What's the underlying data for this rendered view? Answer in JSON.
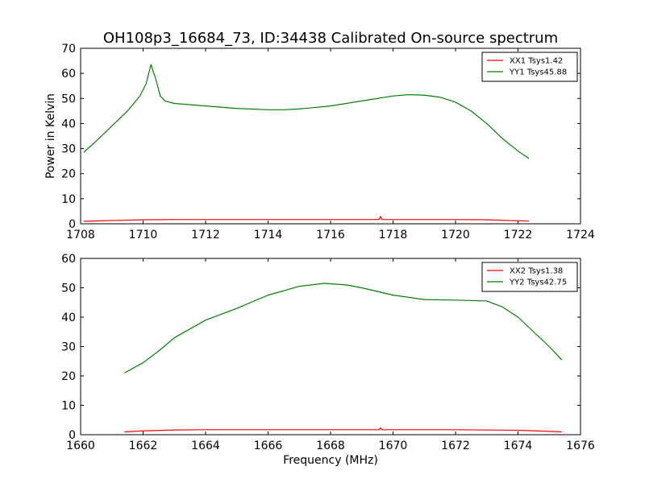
{
  "chart_data": [
    {
      "type": "line",
      "title": "OH108p3_16684_73, ID:34438 Calibrated On-source spectrum",
      "xlabel": "",
      "ylabel": "Power in Kelvin",
      "xlim": [
        1708,
        1724
      ],
      "ylim": [
        0,
        70
      ],
      "xticks": [
        1708,
        1710,
        1712,
        1714,
        1716,
        1718,
        1720,
        1722,
        1724
      ],
      "yticks": [
        0,
        10,
        20,
        30,
        40,
        50,
        60,
        70
      ],
      "legend": "top-right",
      "series": [
        {
          "name": "XX1 Tsys1.42",
          "color": "#ff0000",
          "x": [
            1708.1,
            1709,
            1710,
            1711,
            1712,
            1714,
            1716,
            1717.55,
            1717.6,
            1717.65,
            1718,
            1720,
            1721,
            1722,
            1722.35
          ],
          "y": [
            1.0,
            1.3,
            1.6,
            1.7,
            1.7,
            1.7,
            1.7,
            1.7,
            2.9,
            1.7,
            1.7,
            1.7,
            1.6,
            1.2,
            1.1
          ]
        },
        {
          "name": "YY1 Tsys45.88",
          "color": "#008000",
          "x": [
            1708.1,
            1708.5,
            1709,
            1709.5,
            1709.9,
            1710.1,
            1710.25,
            1710.4,
            1710.55,
            1710.7,
            1711,
            1712,
            1713,
            1714,
            1714.5,
            1715,
            1716,
            1717,
            1718,
            1718.5,
            1719,
            1719.5,
            1720,
            1720.5,
            1721,
            1721.5,
            1722,
            1722.35
          ],
          "y": [
            28.5,
            33,
            39,
            45,
            51,
            56,
            63.5,
            58,
            51,
            49,
            48,
            47,
            46,
            45.5,
            45.5,
            45.8,
            47,
            49,
            51,
            51.5,
            51.3,
            50.5,
            48.5,
            45,
            40,
            34,
            29,
            26
          ]
        }
      ]
    },
    {
      "type": "line",
      "title": "",
      "xlabel": "Frequency (MHz)",
      "ylabel": "",
      "xlim": [
        1660,
        1676
      ],
      "ylim": [
        0,
        60
      ],
      "xticks": [
        1660,
        1662,
        1664,
        1666,
        1668,
        1670,
        1672,
        1674,
        1676
      ],
      "yticks": [
        0,
        10,
        20,
        30,
        40,
        50,
        60
      ],
      "legend": "top-right",
      "series": [
        {
          "name": "XX2 Tsys1.38",
          "color": "#ff0000",
          "x": [
            1661.4,
            1662,
            1663,
            1664,
            1666,
            1668,
            1669.55,
            1669.6,
            1669.65,
            1670,
            1672,
            1674,
            1675.4
          ],
          "y": [
            1.0,
            1.3,
            1.6,
            1.7,
            1.7,
            1.7,
            1.7,
            2.3,
            1.7,
            1.7,
            1.7,
            1.5,
            1.0
          ]
        },
        {
          "name": "YY2 Tsys42.75",
          "color": "#008000",
          "x": [
            1661.4,
            1662,
            1662.5,
            1663,
            1664,
            1665,
            1666,
            1667,
            1667.8,
            1668.5,
            1669,
            1669.6,
            1670,
            1671,
            1672,
            1673,
            1673.5,
            1674,
            1674.5,
            1675,
            1675.4
          ],
          "y": [
            21,
            24.5,
            28.5,
            33,
            39,
            43,
            47.5,
            50.5,
            51.5,
            51,
            50,
            48.5,
            47.5,
            46,
            45.8,
            45.5,
            43.5,
            40,
            35,
            30,
            25.5
          ]
        }
      ]
    }
  ]
}
